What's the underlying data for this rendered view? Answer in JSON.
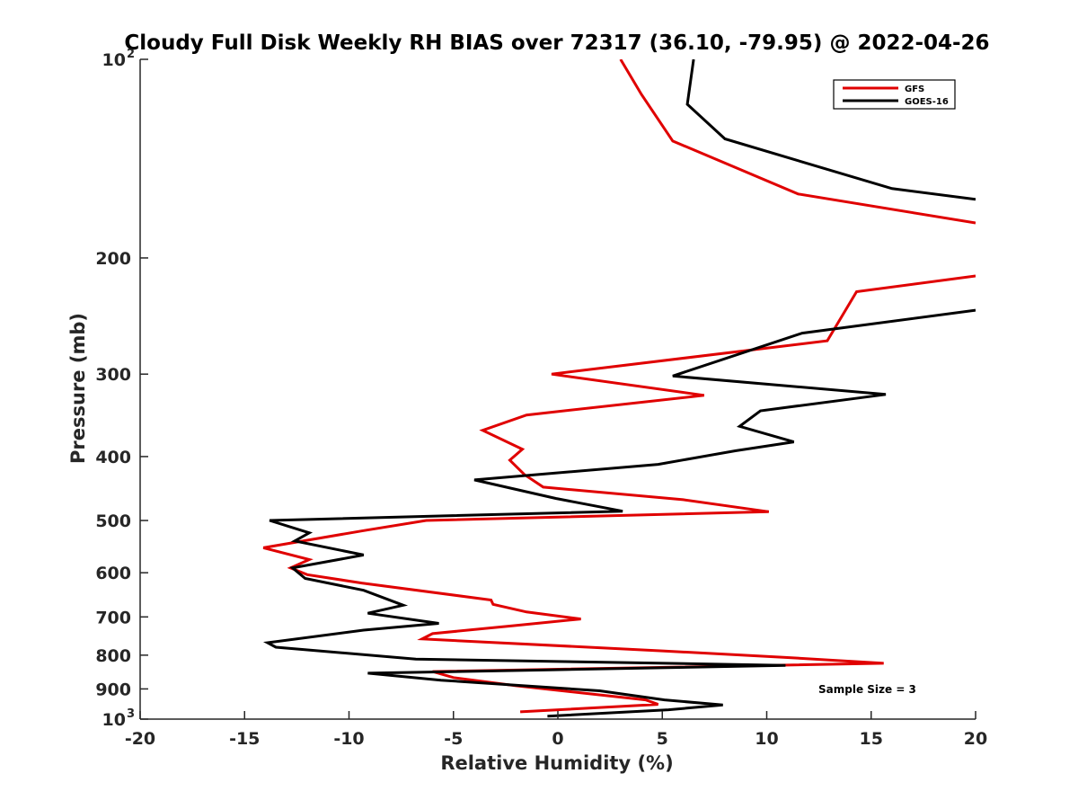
{
  "chart_data": {
    "type": "line",
    "title": "Cloudy Full Disk Weekly RH BIAS over 72317 (36.10, -79.95) @ 2022-04-26",
    "xlabel": "Relative Humidity (%)",
    "ylabel": "Pressure (mb)",
    "xlim": [
      -20,
      20
    ],
    "ylim": [
      100,
      1000
    ],
    "yscale": "log",
    "yreversed": true,
    "grid": false,
    "legend_position": "top-right",
    "xticks": [
      "-20",
      "-15",
      "-10",
      "-5",
      "0",
      "5",
      "10",
      "15",
      "20"
    ],
    "yticks": [
      {
        "value": 100,
        "label": "10",
        "sup": "2"
      },
      {
        "value": 200,
        "label": "200"
      },
      {
        "value": 300,
        "label": "300"
      },
      {
        "value": 400,
        "label": "400"
      },
      {
        "value": 500,
        "label": "500"
      },
      {
        "value": 600,
        "label": "600"
      },
      {
        "value": 700,
        "label": "700"
      },
      {
        "value": 800,
        "label": "800"
      },
      {
        "value": 900,
        "label": "900"
      },
      {
        "value": 1000,
        "label": "10",
        "sup": "3"
      }
    ],
    "annotation": "Sample Size = 3",
    "series": [
      {
        "name": "GFS",
        "color": "#e00000",
        "x": [
          3.0,
          4.0,
          5.5,
          11.5,
          20.0,
          null,
          20.0,
          14.3,
          12.9,
          -0.3,
          7.0,
          -1.5,
          -3.6,
          -1.7,
          -2.3,
          -1.6,
          -0.7,
          6.0,
          10.1,
          -6.3,
          -9.3,
          -14.1,
          -11.9,
          -12.8,
          -12.0,
          -9.4,
          -3.2,
          -3.1,
          -1.5,
          1.1,
          -2.2,
          -6.0,
          -6.5,
          5.0,
          10.8,
          15.6,
          -6.0,
          -5.0,
          -2.0,
          4.2,
          4.8,
          -1.8
        ],
        "y": [
          100,
          113,
          133,
          160,
          177,
          null,
          213,
          225,
          267,
          300,
          323,
          346,
          365,
          390,
          405,
          426,
          445,
          465,
          485,
          500,
          518,
          550,
          573,
          590,
          604,
          622,
          660,
          670,
          688,
          705,
          722,
          742,
          756,
          788,
          806,
          823,
          847,
          865,
          890,
          935,
          950,
          975
        ]
      },
      {
        "name": "GOES-16",
        "color": "#000000",
        "x": [
          6.5,
          6.2,
          8.0,
          16.0,
          20.0,
          null,
          20.0,
          11.7,
          5.5,
          15.7,
          9.7,
          8.7,
          11.3,
          8.5,
          4.8,
          -4.0,
          -0.1,
          3.1,
          -13.8,
          -11.9,
          -12.6,
          -9.3,
          -12.7,
          -12.1,
          -9.3,
          -7.4,
          -9.1,
          -5.7,
          -9.3,
          -13.9,
          -13.5,
          -6.8,
          10.9,
          -0.4,
          -9.1,
          -5.6,
          2.0,
          5.1,
          7.9,
          5.3,
          -0.5
        ],
        "y": [
          100,
          117,
          132,
          157,
          163,
          null,
          240,
          260,
          302,
          322,
          341,
          360,
          380,
          392,
          411,
          434,
          463,
          484,
          500,
          522,
          537,
          564,
          590,
          612,
          638,
          672,
          691,
          716,
          733,
          766,
          778,
          811,
          829,
          842,
          852,
          873,
          906,
          935,
          952,
          968,
          990
        ]
      }
    ]
  }
}
